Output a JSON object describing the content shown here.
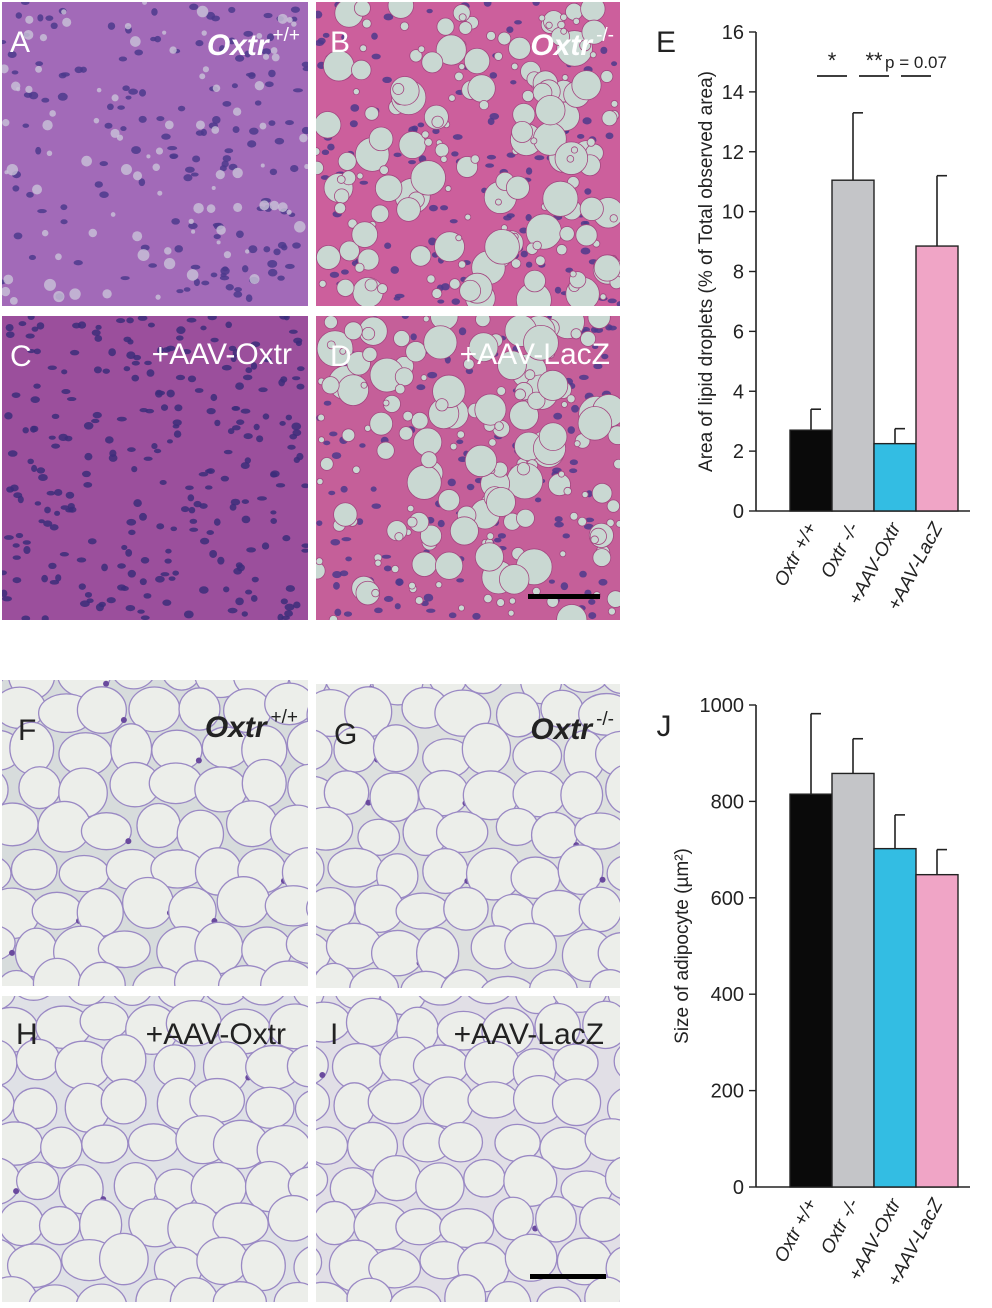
{
  "liver_panels": [
    {
      "letter": "A",
      "group": "Oxtr",
      "sup": "+/+",
      "style": "wt"
    },
    {
      "letter": "B",
      "group": "Oxtr",
      "sup": "-/-",
      "style": "ko"
    },
    {
      "letter": "C",
      "group": "+AAV-Oxtr",
      "sup": "",
      "style": "aav_oxtr"
    },
    {
      "letter": "D",
      "group": "+AAV-LacZ",
      "sup": "",
      "style": "aav_lacz"
    }
  ],
  "fat_panels": [
    {
      "letter": "F",
      "group": "Oxtr",
      "sup": "+/+",
      "style": "fat_wt"
    },
    {
      "letter": "G",
      "group": "Oxtr",
      "sup": "-/-",
      "style": "fat_ko"
    },
    {
      "letter": "H",
      "group": "+AAV-Oxtr",
      "sup": "",
      "style": "fat_oxtr"
    },
    {
      "letter": "I",
      "group": "+AAV-LacZ",
      "sup": "",
      "style": "fat_lacz"
    }
  ],
  "colors": {
    "wt": "#0a0a0a",
    "ko": "#c4c5c8",
    "aav_oxtr": "#33bde3",
    "aav_lacz": "#f0a5c6"
  },
  "chart_data": [
    {
      "panel": "E",
      "type": "bar",
      "categories": [
        "Oxtr +/+",
        "Oxtr -/-",
        "+AAV-Oxtr",
        "+AAV-LacZ"
      ],
      "values": [
        2.7,
        11.05,
        2.25,
        8.85
      ],
      "errors": [
        0.7,
        2.25,
        0.5,
        2.35
      ],
      "colors": [
        "#0a0a0a",
        "#c4c5c8",
        "#33bde3",
        "#f0a5c6"
      ],
      "ylabel": "Area of lipid droplets (% of Total observed area)",
      "ylim": [
        0,
        16
      ],
      "yticks": [
        0,
        2,
        4,
        6,
        8,
        10,
        12,
        14,
        16
      ],
      "significance": [
        {
          "from": 0,
          "to": 1,
          "label": "*"
        },
        {
          "from": 1,
          "to": 2,
          "label": "**"
        },
        {
          "from": 2,
          "to": 3,
          "label": "p = 0.07"
        }
      ],
      "grid": false
    },
    {
      "panel": "J",
      "type": "bar",
      "categories": [
        "Oxtr +/+",
        "Oxtr -/-",
        "+AAV-Oxtr",
        "+AAV-LacZ"
      ],
      "values": [
        815,
        858,
        702,
        648
      ],
      "errors": [
        167,
        72,
        70,
        52
      ],
      "colors": [
        "#0a0a0a",
        "#c4c5c8",
        "#33bde3",
        "#f0a5c6"
      ],
      "ylabel": "Size of adipocyte (µm²)",
      "ylim": [
        0,
        1000
      ],
      "yticks": [
        0,
        200,
        400,
        600,
        800,
        1000
      ],
      "grid": false
    }
  ]
}
